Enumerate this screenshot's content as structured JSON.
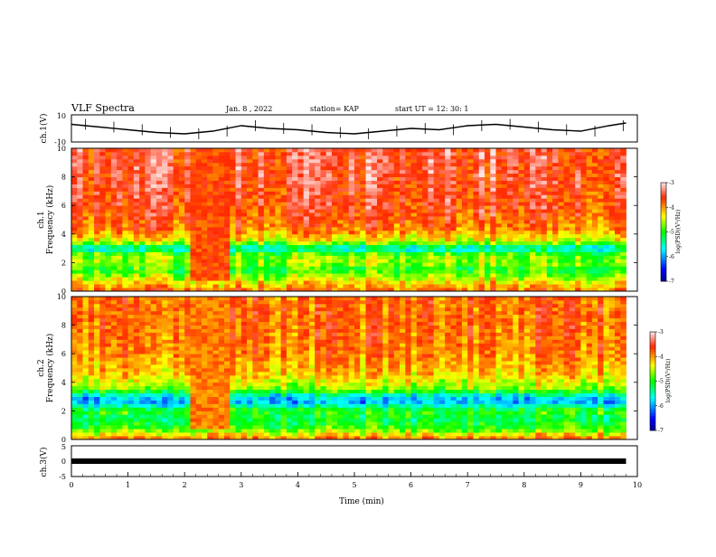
{
  "header": {
    "title": "VLF Spectra",
    "date": "Jan. 8 , 2022",
    "station": "station= KAP",
    "start": "start UT = 12: 30: 1"
  },
  "chart_data": [
    {
      "type": "line",
      "title": "",
      "ylabel": "ch.1(V)",
      "ylim": [
        -10,
        10
      ],
      "yticks": [
        "10",
        "-10"
      ],
      "xlim": [
        0,
        10
      ],
      "series": [
        {
          "x": [
            0,
            0.5,
            1,
            1.5,
            2,
            2.5,
            3,
            3.5,
            4,
            4.5,
            5,
            5.5,
            6,
            6.5,
            7,
            7.5,
            8,
            8.5,
            9,
            9.5,
            9.8
          ],
          "y": [
            3,
            1,
            -1,
            -3,
            -4,
            -2,
            2,
            0,
            -1,
            -3,
            -4,
            -2,
            0,
            -1,
            2,
            3,
            1,
            -1,
            -2,
            2,
            4
          ]
        }
      ]
    },
    {
      "type": "heatmap",
      "title": "",
      "ylabel": "ch.1",
      "ylabel2": "Frequency (kHz)",
      "ylim": [
        0,
        10
      ],
      "yticks": [
        "0",
        "2",
        "4",
        "6",
        "8",
        "10"
      ],
      "xlim": [
        0,
        10
      ],
      "data_xmax": 9.8,
      "colorbar": {
        "label": "log(PSD)(V²/Hz)",
        "range": [
          -7,
          -3
        ],
        "ticks": [
          "-3",
          "-4",
          "-5",
          "-6",
          "-7"
        ]
      },
      "profile": [
        {
          "f": 0.3,
          "v": -4.0
        },
        {
          "f": 0.8,
          "v": -4.4
        },
        {
          "f": 1.5,
          "v": -5.0
        },
        {
          "f": 2.0,
          "v": -4.6
        },
        {
          "f": 2.6,
          "v": -4.8
        },
        {
          "f": 3.0,
          "v": -5.7
        },
        {
          "f": 3.5,
          "v": -4.4
        },
        {
          "f": 4.5,
          "v": -3.8
        },
        {
          "f": 6.0,
          "v": -3.6
        },
        {
          "f": 8.0,
          "v": -3.5
        },
        {
          "f": 10.0,
          "v": -3.5
        }
      ],
      "band": {
        "t": [
          2.1,
          2.75
        ],
        "v": -3.7
      }
    },
    {
      "type": "heatmap",
      "title": "",
      "ylabel": "ch.2",
      "ylabel2": "Frequency (kHz)",
      "ylim": [
        0,
        10
      ],
      "yticks": [
        "0",
        "2",
        "4",
        "6",
        "8",
        "10"
      ],
      "xlim": [
        0,
        10
      ],
      "data_xmax": 9.8,
      "colorbar": {
        "label": "log(PSD)(V²/Hz)",
        "range": [
          -7,
          -3
        ],
        "ticks": [
          "-3",
          "-4",
          "-5",
          "-6",
          "-7"
        ]
      },
      "profile": [
        {
          "f": 0.3,
          "v": -4.2
        },
        {
          "f": 0.8,
          "v": -4.9
        },
        {
          "f": 1.5,
          "v": -5.2
        },
        {
          "f": 2.0,
          "v": -4.9
        },
        {
          "f": 2.6,
          "v": -5.9
        },
        {
          "f": 3.0,
          "v": -5.8
        },
        {
          "f": 3.5,
          "v": -4.7
        },
        {
          "f": 4.5,
          "v": -4.2
        },
        {
          "f": 6.0,
          "v": -3.9
        },
        {
          "f": 8.0,
          "v": -3.8
        },
        {
          "f": 10.0,
          "v": -3.8
        }
      ],
      "band": {
        "t": [
          2.1,
          2.75
        ],
        "v": -3.9
      }
    },
    {
      "type": "line",
      "title": "",
      "ylabel": "ch.3(V)",
      "ylim": [
        -5,
        5
      ],
      "yticks": [
        "5",
        "0",
        "-5"
      ],
      "xlim": [
        0,
        10
      ],
      "xlabel": "Time (min)",
      "xticks": [
        "0",
        "1",
        "2",
        "3",
        "4",
        "5",
        "6",
        "7",
        "8",
        "9",
        "10"
      ],
      "series": [
        {
          "x": [
            0,
            9.8
          ],
          "y": [
            0,
            0
          ]
        }
      ]
    }
  ]
}
